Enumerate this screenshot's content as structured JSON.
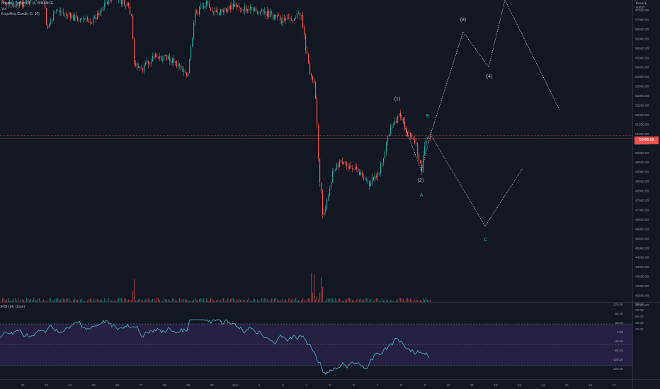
{
  "legend": {
    "symbol": "Bitcoin / TetherUS, 1h, BINANCE",
    "volume": "Vol",
    "indicator": "Engulfing Candle (5, 10)"
  },
  "currency_label": [
    "Pricel ▾",
    "USDT"
  ],
  "price_tag": "50486.59",
  "rsi": {
    "label": "RSI (14, close)",
    "ticks": [
      "120.00",
      "80.00",
      "40.00",
      "0.00",
      "-40.00",
      "-80.00",
      "-120.00",
      "-160.00"
    ]
  },
  "price_axis": [
    "57500.00",
    "57000.00",
    "56500.00",
    "56000.00",
    "55500.00",
    "55000.00",
    "54500.00",
    "54000.00",
    "53500.00",
    "53000.00",
    "52500.00",
    "52000.00",
    "51500.00",
    "51000.00",
    "50500.00",
    "50000.00",
    "49500.00",
    "49000.00",
    "48500.00",
    "48000.00",
    "47500.00",
    "47000.00",
    "46500.00",
    "46000.00",
    "45500.00",
    "45000.00",
    "44500.00",
    "44000.00",
    "43500.00",
    "43000.00",
    "42500.00",
    "42000.00"
  ],
  "rsi_right_ticks": [
    "90.00",
    "70.00",
    "50.00",
    "30.00",
    "10.00"
  ],
  "time_axis": [
    "22",
    "23",
    "24",
    "25",
    "26",
    "27",
    "28",
    "29",
    "30",
    "Dec",
    "2",
    "3",
    "4",
    "5",
    "6",
    "7",
    "8",
    "9",
    "10",
    "11",
    "12",
    "13",
    "14",
    "15",
    "16",
    "17"
  ],
  "waves": {
    "w1": "(1)",
    "w2": "(2)",
    "w3": "(3)",
    "w4": "(4)",
    "a": "A",
    "b": "B",
    "c": "C"
  },
  "colors": {
    "background": "#131722",
    "up": "#26a69a",
    "down": "#ef5350",
    "rsi_line": "#4fb2c9",
    "rsi_band": "#2a2346",
    "wave_label": "#b2b5be",
    "abc_label": "#26a69a"
  }
}
